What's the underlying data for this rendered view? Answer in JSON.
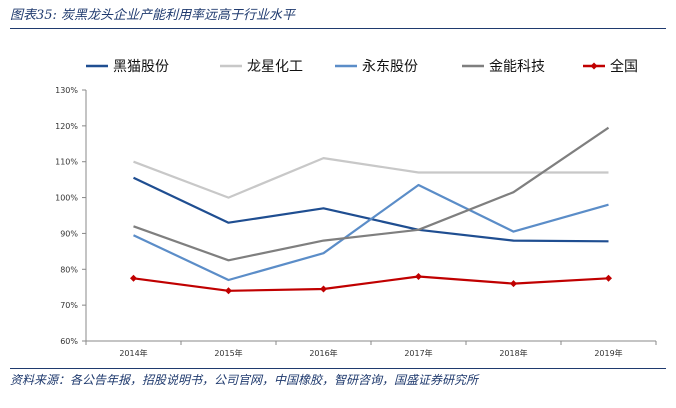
{
  "figure": {
    "title": "图表35: 炭黑龙头企业产能利用率远高于行业水平",
    "source": "资料来源：各公告年报，招股说明书，公司官网，中国橡胶，智研咨询，国盛证券研究所"
  },
  "chart_data": {
    "type": "line",
    "title": "",
    "xlabel": "",
    "ylabel": "",
    "x": [
      "2014年",
      "2015年",
      "2016年",
      "2017年",
      "2018年",
      "2019年"
    ],
    "ylim": [
      60,
      130
    ],
    "yticks": [
      "60%",
      "70%",
      "80%",
      "90%",
      "100%",
      "110%",
      "120%",
      "130%"
    ],
    "grid": false,
    "legend_position": "top",
    "series": [
      {
        "name": "黑猫股份",
        "color": "#1f4e91",
        "values": [
          105.5,
          93,
          97,
          91,
          88,
          87.8
        ]
      },
      {
        "name": "龙星化工",
        "color": "#c8c8c8",
        "values": [
          110,
          100,
          111,
          107,
          107,
          107
        ]
      },
      {
        "name": "永东股份",
        "color": "#5b8dc8",
        "values": [
          89.5,
          77,
          84.5,
          103.5,
          90.5,
          98
        ]
      },
      {
        "name": "金能科技",
        "color": "#7f7f7f",
        "values": [
          92,
          82.5,
          88,
          91,
          101.5,
          119.5
        ]
      },
      {
        "name": "全国",
        "color": "#c00000",
        "marker": "diamond",
        "values": [
          77.5,
          74,
          74.5,
          78,
          76,
          77.5
        ]
      }
    ]
  }
}
